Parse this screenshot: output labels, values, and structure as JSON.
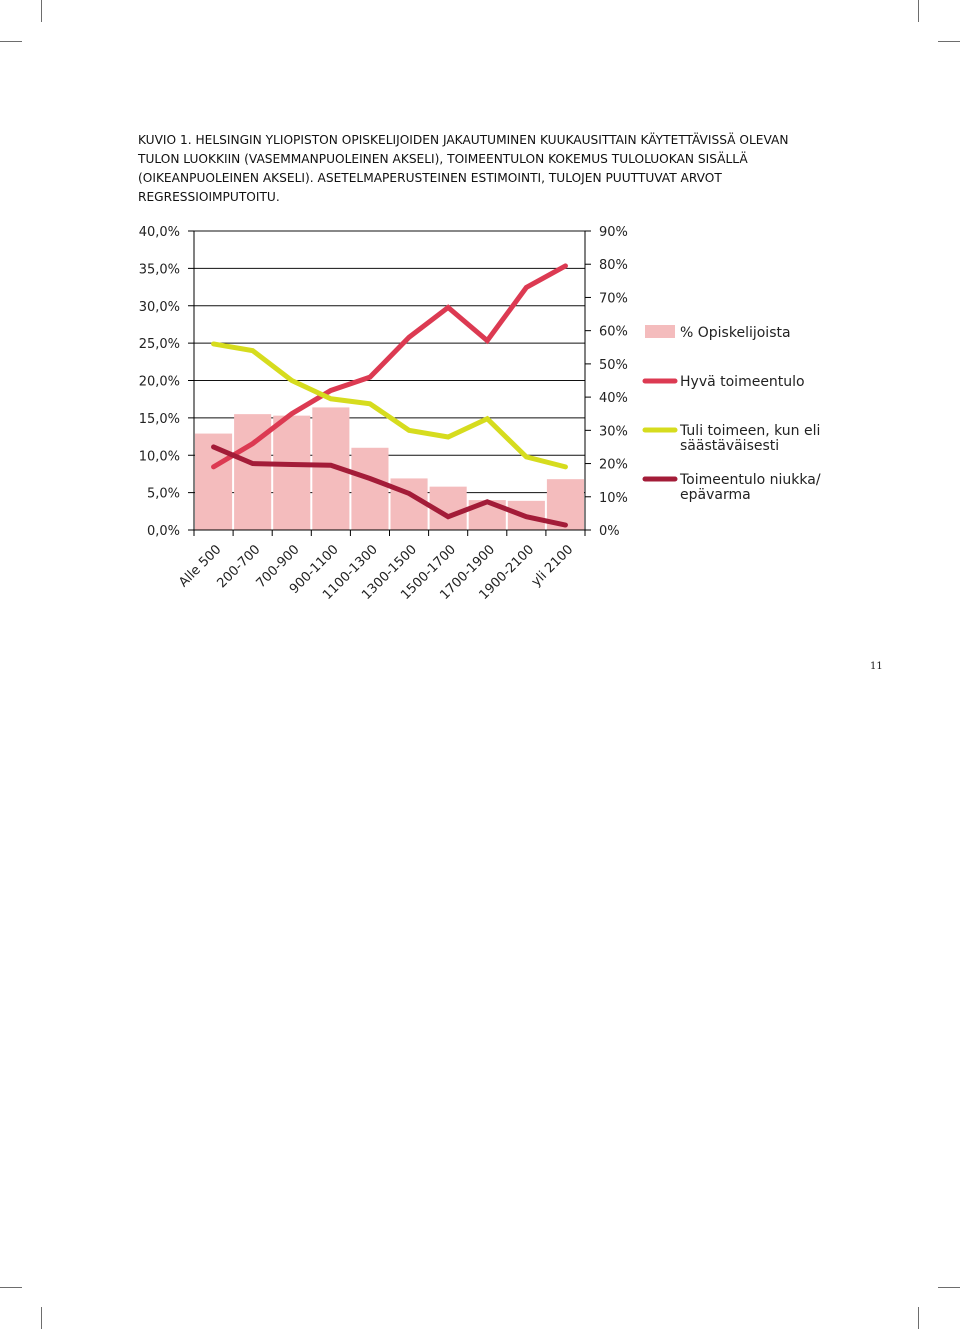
{
  "caption": "KUVIO 1. HELSINGIN YLIOPISTON OPISKELIJOIDEN JAKAUTUMINEN KUUKAUSITTAIN KÄYTETTÄVISSÄ OLEVAN TULON LUOKKIIN (VASEMMANPUOLEINEN AKSELI), TOIMEENTULON KOKEMUS TULOLUOKAN SISÄLLÄ (OIKEANPUOLEINEN AKSELI). ASETELMAPERUSTEINEN ESTIMOINTI, TULOJEN PUUTTUVAT ARVOT REGRESSIOIMPUTOITU.",
  "page_number": "11",
  "colors": {
    "bars": "#f4bcbd",
    "good": "#dc3a52",
    "thrifty": "#d6dc1e",
    "poor": "#a31c38",
    "axis": "#000000"
  },
  "chart_data": {
    "type": "bar+line",
    "categories": [
      "Alle 500",
      "200-700",
      "700-900",
      "900-1100",
      "1100-1300",
      "1300-1500",
      "1500-1700",
      "1700-1900",
      "1900-2100",
      "yli 2100"
    ],
    "left_axis": {
      "ylim": [
        0,
        40
      ],
      "ticks": [
        0,
        5,
        10,
        15,
        20,
        25,
        30,
        35,
        40
      ],
      "tick_labels": [
        "0,0%",
        "5,0%",
        "10,0%",
        "15,0%",
        "20,0%",
        "25,0%",
        "30,0%",
        "35,0%",
        "40,0%"
      ]
    },
    "right_axis": {
      "ylim": [
        0,
        90
      ],
      "ticks": [
        0,
        10,
        20,
        30,
        40,
        50,
        60,
        70,
        80,
        90
      ],
      "tick_labels": [
        "0%",
        "10%",
        "20%",
        "30%",
        "40%",
        "50%",
        "60%",
        "70%",
        "80%",
        "90%"
      ]
    },
    "series": [
      {
        "name": "% Opiskelijoista",
        "kind": "bar",
        "axis": "left",
        "color": "#f4bcbd",
        "values": [
          12.9,
          15.5,
          15.3,
          16.4,
          11.0,
          6.9,
          5.8,
          4.0,
          3.9,
          6.8
        ]
      },
      {
        "name": "Hyvä toimeentulo",
        "kind": "line",
        "axis": "right",
        "color": "#dc3a52",
        "values": [
          19,
          26,
          35,
          42,
          46,
          58,
          67,
          57,
          73,
          79.5
        ]
      },
      {
        "name": "Tuli toimeen, kun eli säästäväisesti",
        "kind": "line",
        "axis": "right",
        "color": "#d6dc1e",
        "values": [
          56,
          54,
          45,
          39.5,
          38,
          30,
          28,
          33.5,
          22,
          19
        ]
      },
      {
        "name": "Toimeentulo niukka/ epävarma",
        "kind": "line",
        "axis": "right",
        "color": "#a31c38",
        "values": [
          25,
          20,
          19.7,
          19.5,
          15.5,
          11,
          4,
          8.5,
          4,
          1.5
        ]
      }
    ]
  }
}
